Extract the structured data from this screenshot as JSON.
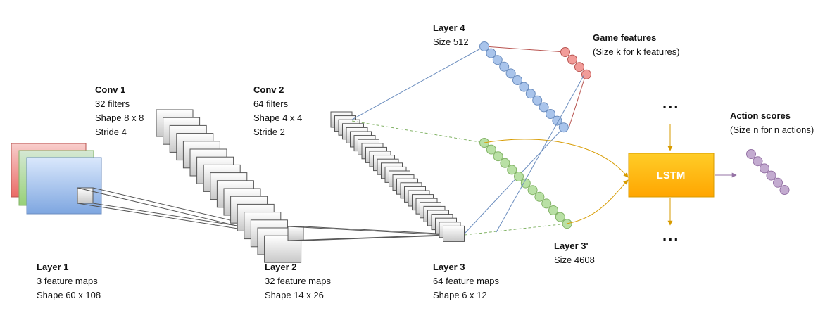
{
  "labels": {
    "conv1": {
      "title": "Conv 1",
      "lines": [
        "32 filters",
        "Shape 8 x 8",
        "Stride 4"
      ]
    },
    "conv2": {
      "title": "Conv 2",
      "lines": [
        "64 filters",
        "Shape 4 x 4",
        "Stride 2"
      ]
    },
    "layer1": {
      "title": "Layer 1",
      "lines": [
        "3 feature maps",
        "Shape 60 x 108"
      ]
    },
    "layer2": {
      "title": "Layer 2",
      "lines": [
        "32 feature maps",
        "Shape 14 x 26"
      ]
    },
    "layer3": {
      "title": "Layer 3",
      "lines": [
        "64 feature maps",
        "Shape 6 x 12"
      ]
    },
    "layer4": {
      "title": "Layer 4",
      "lines": [
        "Size 512"
      ]
    },
    "layer3p": {
      "title": "Layer 3'",
      "lines": [
        "Size 4608"
      ]
    },
    "game": {
      "title": "Game features",
      "lines": [
        "(Size k for k features)"
      ]
    },
    "action": {
      "title": "Action scores",
      "lines": [
        "(Size n for n actions)"
      ]
    }
  },
  "lstm": {
    "label": "LSTM"
  },
  "ellipsis": {
    "top": "...",
    "bottom": "..."
  },
  "colors": {
    "blue_fill": "#a9c4eb",
    "blue_stroke": "#6c8ebf",
    "green_fill": "#b9e0a5",
    "green_stroke": "#82b366",
    "red_fill": "#f19c99",
    "red_stroke": "#b85450",
    "purple_fill": "#c3abd0",
    "purple_stroke": "#9673a6",
    "lstm_top": "#ffcd28",
    "lstm_bottom": "#ffa500",
    "orange_line": "#d79b00",
    "purple_arrow": "#9673a6"
  }
}
